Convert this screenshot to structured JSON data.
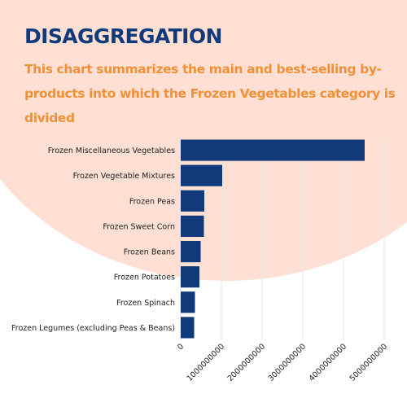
{
  "header": {
    "title": "DISAGGREGATION",
    "subtitle": "This chart summarizes the main and best-selling by-products into which the Frozen Vegetables category is divided"
  },
  "colors": {
    "title": "#123a7a",
    "subtitle": "#f0913a",
    "background_shape": "#fde0d3",
    "bar": "#123a7a",
    "grid": "#e4e4e4",
    "text": "#222222"
  },
  "chart_data": {
    "type": "bar",
    "orientation": "horizontal",
    "categories": [
      "Frozen Miscellaneous Vegetables",
      "Frozen Vegetable Mixtures",
      "Frozen Peas",
      "Frozen Sweet Corn",
      "Frozen Beans",
      "Frozen Potatoes",
      "Frozen Spinach",
      "Frozen Legumes (excluding Peas & Beans)"
    ],
    "values": [
      4520000000,
      1020000000,
      580000000,
      570000000,
      490000000,
      460000000,
      350000000,
      330000000
    ],
    "xlim": [
      0,
      5000000000
    ],
    "xticks": [
      "0",
      "1000000000",
      "2000000000",
      "3000000000",
      "4000000000",
      "5000000000"
    ],
    "grid": true,
    "xlabel": "",
    "ylabel": ""
  }
}
